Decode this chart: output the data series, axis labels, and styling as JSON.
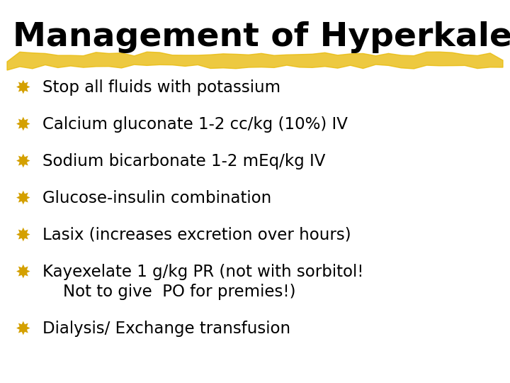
{
  "title": "Management of Hyperkalemia",
  "title_color": "#000000",
  "title_fontsize": 34,
  "title_fontweight": "bold",
  "background_color": "#FFFFFF",
  "underline_color": "#E8B800",
  "underline_alpha": 0.75,
  "bullet_color": "#D4A000",
  "text_color": "#000000",
  "text_fontsize": 16.5,
  "bullet_items": [
    [
      "Stop all fluids with potassium"
    ],
    [
      "Calcium gluconate 1-2 cc/kg (10%) IV"
    ],
    [
      "Sodium bicarbonate 1-2 mEq/kg IV"
    ],
    [
      "Glucose-insulin combination"
    ],
    [
      "Lasix (increases excretion over hours)"
    ],
    [
      "Kayexelate 1 g/kg PR (not with sorbitol!",
      "    Not to give  PO for premies!)"
    ],
    [
      "Dialysis/ Exchange transfusion"
    ]
  ]
}
